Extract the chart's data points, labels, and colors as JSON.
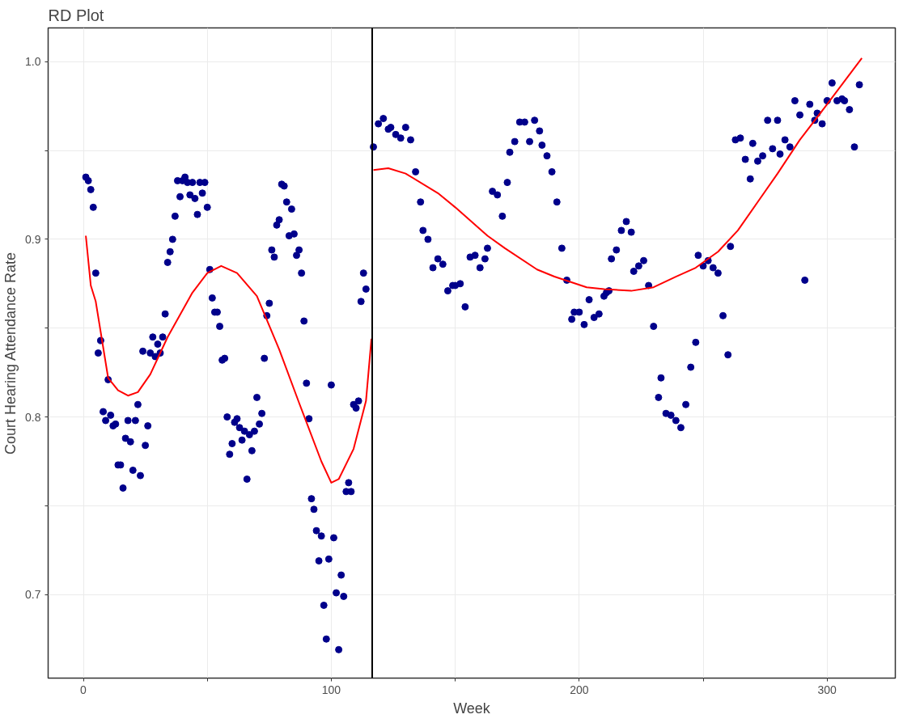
{
  "chart_data": {
    "type": "scatter",
    "title": "RD Plot",
    "xlabel": "Week",
    "ylabel": "Court Hearing Attendance Rate",
    "xlim": [
      -14.2,
      327.5
    ],
    "ylim": [
      0.653,
      1.019
    ],
    "xticks": [
      0,
      {
        "value": 50,
        "label": null
      },
      100,
      {
        "value": 150,
        "label": null
      },
      200,
      {
        "value": 250,
        "label": null
      },
      300
    ],
    "yticks": [
      {
        "value": 0.7,
        "label": "0.7"
      },
      {
        "value": 0.75,
        "label": null
      },
      {
        "value": 0.8,
        "label": "0.8"
      },
      {
        "value": 0.85,
        "label": null
      },
      {
        "value": 0.9,
        "label": "0.9"
      },
      {
        "value": 0.95,
        "label": null
      },
      {
        "value": 1.0,
        "label": "1.0"
      }
    ],
    "grid": true,
    "ref_lines": [
      {
        "axis": "x",
        "value": 116.5,
        "color": "#000000"
      }
    ],
    "series": [
      {
        "marker": "circle",
        "color": "#00008b",
        "x": [
          1,
          2,
          3,
          4,
          5,
          6,
          7,
          8,
          9,
          10,
          11,
          12,
          13,
          14,
          15,
          16,
          17,
          18,
          19,
          20,
          21,
          22,
          23,
          24,
          25,
          26,
          27,
          28,
          29,
          30,
          31,
          32,
          33,
          34,
          35,
          36,
          37,
          38,
          39,
          40,
          41,
          42,
          43,
          44,
          45,
          46,
          47,
          48,
          49,
          50,
          51,
          52,
          53,
          54,
          55,
          56,
          57,
          58,
          59,
          60,
          61,
          62,
          63,
          64,
          65,
          66,
          67,
          68,
          69,
          70,
          71,
          72,
          73,
          74,
          75,
          76,
          77,
          78,
          79,
          80,
          81,
          82,
          83,
          84,
          85,
          86,
          87,
          88,
          89,
          90,
          91,
          92,
          93,
          94,
          95,
          96,
          97,
          98,
          99,
          100,
          101,
          102,
          103,
          104,
          105,
          106,
          107,
          108,
          109,
          110,
          111,
          112,
          113,
          114,
          117,
          119,
          121,
          123,
          124,
          126,
          128,
          130,
          132,
          134,
          136,
          137,
          139,
          141,
          143,
          145,
          147,
          149,
          150,
          152,
          154,
          156,
          158,
          160,
          162,
          163,
          165,
          167,
          169,
          171,
          172,
          174,
          176,
          178,
          180,
          182,
          184,
          185,
          187,
          189,
          191,
          193,
          195,
          197,
          198,
          200,
          202,
          204,
          206,
          208,
          210,
          211,
          212,
          213,
          215,
          217,
          219,
          221,
          222,
          224,
          226,
          228,
          230,
          232,
          233,
          235,
          237,
          239,
          241,
          243,
          245,
          247,
          248,
          250,
          252,
          254,
          256,
          258,
          260,
          261,
          263,
          265,
          267,
          269,
          270,
          272,
          274,
          276,
          278,
          280,
          281,
          283,
          285,
          287,
          289,
          291,
          293,
          295,
          296,
          298,
          300,
          302,
          304,
          306,
          307,
          309,
          311,
          313
        ],
        "values": [
          0.935,
          0.933,
          0.928,
          0.918,
          0.881,
          0.836,
          0.843,
          0.803,
          0.798,
          0.821,
          0.801,
          0.795,
          0.796,
          0.773,
          0.773,
          0.76,
          0.788,
          0.798,
          0.786,
          0.77,
          0.798,
          0.807,
          0.767,
          0.837,
          0.784,
          0.795,
          0.836,
          0.845,
          0.834,
          0.841,
          0.836,
          0.845,
          0.858,
          0.887,
          0.893,
          0.9,
          0.913,
          0.933,
          0.924,
          0.933,
          0.935,
          0.932,
          0.925,
          0.932,
          0.923,
          0.914,
          0.932,
          0.926,
          0.932,
          0.918,
          0.883,
          0.867,
          0.859,
          0.859,
          0.851,
          0.832,
          0.833,
          0.8,
          0.779,
          0.785,
          0.797,
          0.799,
          0.794,
          0.787,
          0.792,
          0.765,
          0.79,
          0.781,
          0.792,
          0.811,
          0.796,
          0.802,
          0.833,
          0.857,
          0.864,
          0.894,
          0.89,
          0.908,
          0.911,
          0.931,
          0.93,
          0.921,
          0.902,
          0.917,
          0.903,
          0.891,
          0.894,
          0.881,
          0.854,
          0.819,
          0.799,
          0.754,
          0.748,
          0.736,
          0.719,
          0.733,
          0.694,
          0.675,
          0.72,
          0.818,
          0.732,
          0.701,
          0.669,
          0.711,
          0.699,
          0.758,
          0.763,
          0.758,
          0.807,
          0.805,
          0.809,
          0.865,
          0.881,
          0.872,
          0.952,
          0.965,
          0.968,
          0.962,
          0.963,
          0.959,
          0.957,
          0.963,
          0.956,
          0.938,
          0.921,
          0.905,
          0.9,
          0.884,
          0.889,
          0.886,
          0.871,
          0.874,
          0.874,
          0.875,
          0.862,
          0.89,
          0.891,
          0.884,
          0.889,
          0.895,
          0.927,
          0.925,
          0.913,
          0.932,
          0.949,
          0.955,
          0.966,
          0.966,
          0.955,
          0.967,
          0.961,
          0.953,
          0.947,
          0.938,
          0.921,
          0.895,
          0.877,
          0.855,
          0.859,
          0.859,
          0.852,
          0.866,
          0.856,
          0.858,
          0.868,
          0.87,
          0.871,
          0.889,
          0.894,
          0.905,
          0.91,
          0.904,
          0.882,
          0.885,
          0.888,
          0.874,
          0.851,
          0.811,
          0.822,
          0.802,
          0.801,
          0.798,
          0.794,
          0.807,
          0.828,
          0.842,
          0.891,
          0.885,
          0.888,
          0.884,
          0.881,
          0.857,
          0.835,
          0.896,
          0.956,
          0.957,
          0.945,
          0.934,
          0.954,
          0.944,
          0.947,
          0.967,
          0.951,
          0.967,
          0.948,
          0.956,
          0.952,
          0.978,
          0.97,
          0.877,
          0.976,
          0.967,
          0.971,
          0.965,
          0.978,
          0.988,
          0.978,
          0.979,
          0.978,
          0.973,
          0.952,
          0.987
        ]
      },
      {
        "type": "line",
        "color": "#ff0000",
        "x": [
          1,
          3,
          5,
          10,
          14,
          18,
          22,
          27,
          34,
          44,
          50,
          55.6,
          62,
          70,
          79,
          87,
          96,
          100,
          103,
          109,
          114,
          116.2
        ],
        "values": [
          0.902,
          0.874,
          0.865,
          0.822,
          0.815,
          0.812,
          0.814,
          0.824,
          0.845,
          0.87,
          0.881,
          0.885,
          0.881,
          0.868,
          0.838,
          0.808,
          0.775,
          0.763,
          0.765,
          0.782,
          0.809,
          0.844
        ]
      },
      {
        "type": "line",
        "color": "#ff0000",
        "x": [
          117,
          123,
          130,
          143,
          150,
          163,
          170,
          183,
          190,
          203,
          210,
          221,
          230,
          239,
          247,
          256,
          264,
          272,
          280,
          289,
          300,
          314
        ],
        "values": [
          0.939,
          0.94,
          0.937,
          0.926,
          0.918,
          0.902,
          0.895,
          0.883,
          0.879,
          0.873,
          0.872,
          0.871,
          0.873,
          0.879,
          0.884,
          0.893,
          0.905,
          0.921,
          0.937,
          0.956,
          0.976,
          1.002
        ]
      }
    ]
  }
}
